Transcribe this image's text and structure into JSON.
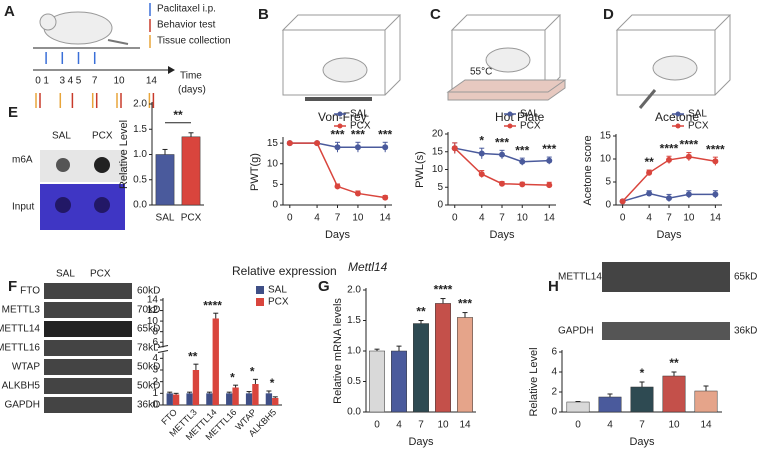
{
  "timeline": {
    "panel": "A",
    "legend": [
      "Paclitaxel i.p.",
      "Behavior test",
      "Tissue collection"
    ],
    "axis_label": [
      "Time",
      "(days)"
    ],
    "days": [
      0,
      1,
      3,
      4,
      5,
      7,
      10,
      14
    ]
  },
  "images": {
    "hot_plate_label": "55°C"
  },
  "blots": {
    "E": {
      "columns": [
        "SAL",
        "PCX"
      ],
      "rows": [
        "m6A",
        "Input"
      ]
    },
    "F": {
      "columns": [
        "SAL",
        "PCX"
      ],
      "rows": [
        {
          "protein": "FTO",
          "size": "60kD"
        },
        {
          "protein": "METTL3",
          "size": "70kD"
        },
        {
          "protein": "METTL14",
          "size": "65kD"
        },
        {
          "protein": "METTL16",
          "size": "78kD"
        },
        {
          "protein": "WTAP",
          "size": "50kD"
        },
        {
          "protein": "ALKBH5",
          "size": "50kD"
        },
        {
          "protein": "GAPDH",
          "size": "36kD"
        }
      ]
    },
    "H": {
      "rows": [
        {
          "protein": "METTL14",
          "size": "65kD"
        },
        {
          "protein": "GAPDH",
          "size": "36kD"
        }
      ]
    }
  },
  "chart_data": [
    {
      "type": "line",
      "panel": "B",
      "title": "Von-Frey",
      "x": [
        0,
        4,
        7,
        10,
        14
      ],
      "xticks": [
        0,
        4,
        7,
        10,
        14
      ],
      "xlim": [
        -1,
        15
      ],
      "ylim": [
        0,
        16
      ],
      "yticks": [
        0,
        5,
        10,
        15
      ],
      "xlabel": "Days",
      "ylabel": "PWT(g)",
      "legend": "top-right",
      "series": [
        {
          "name": "SAL",
          "color": "#4a5a9c",
          "values": [
            15,
            15,
            14,
            14,
            14
          ],
          "errors": [
            0.3,
            0.3,
            1.2,
            1.2,
            1.2
          ]
        },
        {
          "name": "PCX",
          "color": "#d9453d",
          "values": [
            15,
            15,
            4.5,
            2.8,
            1.8
          ],
          "errors": [
            0.3,
            0.3,
            0.6,
            0.6,
            0.5
          ]
        }
      ],
      "significance": [
        null,
        null,
        "***",
        "***",
        "***"
      ]
    },
    {
      "type": "line",
      "panel": "C",
      "title": "Hot Plate",
      "x": [
        0,
        4,
        7,
        10,
        14
      ],
      "xticks": [
        0,
        4,
        7,
        10,
        14
      ],
      "xlim": [
        -1,
        15
      ],
      "ylim": [
        0,
        20
      ],
      "yticks": [
        0,
        5,
        10,
        15,
        20
      ],
      "xlabel": "Days",
      "ylabel": "PWL(s)",
      "legend": "top-right",
      "series": [
        {
          "name": "SAL",
          "color": "#4a5a9c",
          "values": [
            16,
            14.5,
            14.2,
            12.2,
            12.5
          ],
          "errors": [
            1.5,
            1.5,
            1.2,
            1,
            1
          ]
        },
        {
          "name": "PCX",
          "color": "#d9453d",
          "values": [
            16,
            8.7,
            6,
            5.8,
            5.6
          ],
          "errors": [
            1.5,
            1,
            0.6,
            0.6,
            0.8
          ]
        }
      ],
      "significance": [
        null,
        "*",
        "***",
        "***",
        "***"
      ]
    },
    {
      "type": "line",
      "panel": "D",
      "title": "Acetone",
      "x": [
        0,
        4,
        7,
        10,
        14
      ],
      "xticks": [
        0,
        4,
        7,
        10,
        14
      ],
      "xlim": [
        -1,
        15
      ],
      "ylim": [
        0,
        15
      ],
      "yticks": [
        0,
        5,
        10,
        15
      ],
      "xlabel": "Days",
      "ylabel": "Acetone score",
      "legend": "top-right",
      "series": [
        {
          "name": "SAL",
          "color": "#4a5a9c",
          "values": [
            0.8,
            2.5,
            1.5,
            2.3,
            2.3
          ],
          "errors": [
            0.3,
            0.6,
            0.8,
            0.8,
            0.8
          ]
        },
        {
          "name": "PCX",
          "color": "#d9453d",
          "values": [
            0.8,
            7,
            9.8,
            10.5,
            9.5
          ],
          "errors": [
            0.3,
            0.6,
            0.8,
            0.9,
            0.9
          ]
        }
      ],
      "significance": [
        null,
        "**",
        "****",
        "****",
        "****"
      ]
    },
    {
      "type": "bar",
      "panel": "E",
      "categories": [
        "SAL",
        "PCX"
      ],
      "values": [
        1.0,
        1.35
      ],
      "errors": [
        0.1,
        0.08
      ],
      "colors": [
        "#4a5a9c",
        "#d9453d"
      ],
      "ylim": [
        0,
        2
      ],
      "yticks": [
        {
          "value": 0,
          "label": "0.0"
        },
        {
          "value": 0.5,
          "label": "0.5"
        },
        {
          "value": 1,
          "label": "1.0"
        },
        {
          "value": 1.5,
          "label": "1.5"
        },
        {
          "value": 2,
          "label": "2.0"
        }
      ],
      "ylabel": "Relative Level",
      "bracket": "**"
    },
    {
      "type": "grouped_bar",
      "panel": "F",
      "title": "Relative expression",
      "categories": [
        "FTO",
        "METTL3",
        "METTL14",
        "METTL16",
        "WTAP",
        "ALKBH5"
      ],
      "ylim": [
        0,
        14
      ],
      "ybreak": [
        4.5,
        5
      ],
      "yticks": [
        0,
        1,
        2,
        3,
        4,
        6,
        8,
        10,
        12,
        14
      ],
      "legend": "top-right",
      "series": [
        {
          "name": "SAL",
          "color": "#3f4f86",
          "values": [
            1,
            1,
            1,
            1,
            1,
            1
          ],
          "errors": [
            0.1,
            0.1,
            0.1,
            0.1,
            0.15,
            0.2
          ]
        },
        {
          "name": "PCX",
          "color": "#d9453d",
          "values": [
            0.9,
            3,
            10.5,
            1.5,
            1.8,
            0.6
          ],
          "errors": [
            0.1,
            0.5,
            1.0,
            0.2,
            0.4,
            0.1
          ]
        }
      ],
      "significance": [
        null,
        "**",
        "****",
        "*",
        "*",
        "*"
      ]
    },
    {
      "type": "bar",
      "panel": "G",
      "title": "Mettl14",
      "categories": [
        "0",
        "4",
        "7",
        "10",
        "14"
      ],
      "values": [
        1.0,
        1.0,
        1.45,
        1.78,
        1.55
      ],
      "errors": [
        0.03,
        0.08,
        0.05,
        0.08,
        0.08
      ],
      "colors": [
        "#d9d9d9",
        "#4a5a9c",
        "#2e4a52",
        "#c4504a",
        "#e5a48a"
      ],
      "ylim": [
        0,
        2
      ],
      "yticks": [
        {
          "value": 0,
          "label": "0.0"
        },
        {
          "value": 0.5,
          "label": "0.5"
        },
        {
          "value": 1,
          "label": "1.0"
        },
        {
          "value": 1.5,
          "label": "1.5"
        },
        {
          "value": 2,
          "label": "2.0"
        }
      ],
      "ylabel": "Relative  mRNA levels",
      "xlabel": "Days",
      "significance": [
        null,
        null,
        "**",
        "****",
        "***"
      ]
    },
    {
      "type": "bar",
      "panel": "H",
      "categories": [
        "0",
        "4",
        "7",
        "10",
        "14"
      ],
      "values": [
        1.0,
        1.5,
        2.5,
        3.6,
        2.1
      ],
      "errors": [
        0.05,
        0.3,
        0.5,
        0.4,
        0.5
      ],
      "colors": [
        "#d9d9d9",
        "#4a5a9c",
        "#2e4a52",
        "#c4504a",
        "#e5a48a"
      ],
      "ylim": [
        0,
        6
      ],
      "yticks": [
        0,
        2,
        4,
        6
      ],
      "ylabel": "Relative Level",
      "xlabel": "Days",
      "significance": [
        null,
        null,
        "*",
        "**",
        null
      ]
    }
  ]
}
